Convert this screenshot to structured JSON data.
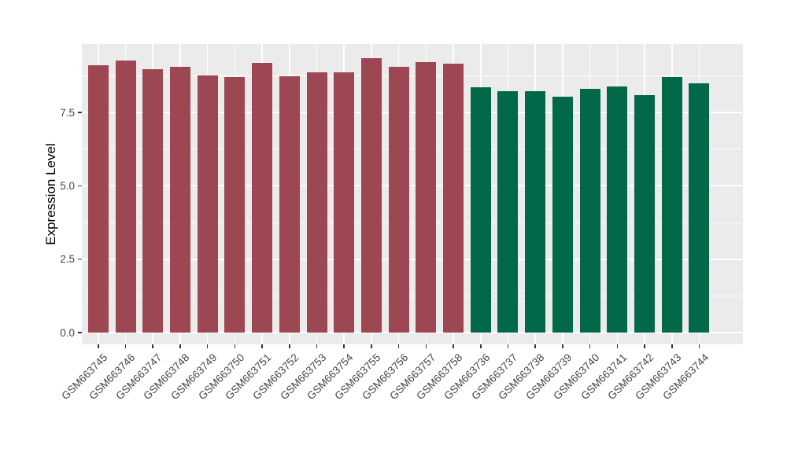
{
  "figure": {
    "background": "#FFFFFF"
  },
  "chart_data": {
    "type": "bar",
    "title": "",
    "xlabel": "",
    "ylabel": "Expression Level",
    "legend_position": "none",
    "grid": "on",
    "panel_background": "#EBEBEB",
    "grid_color": "#FFFFFF",
    "axis_text_color": "#454545",
    "axis_title_color": "#000000",
    "tick_color": "#333333",
    "ylim": [
      0,
      9.8
    ],
    "y_major_ticks": [
      {
        "label": "0.0",
        "value": 0.0
      },
      {
        "label": "2.5",
        "value": 2.5
      },
      {
        "label": "5.0",
        "value": 5.0
      },
      {
        "label": "7.5",
        "value": 7.5
      }
    ],
    "y_minor_breaks": [
      1.25,
      3.75,
      6.25,
      8.75
    ],
    "group_colors": {
      "group1": "#9C4752",
      "group2": "#01694A"
    },
    "bars": [
      {
        "label": "GSM663745",
        "value": 9.1,
        "group": "group1"
      },
      {
        "label": "GSM663746",
        "value": 9.27,
        "group": "group1"
      },
      {
        "label": "GSM663747",
        "value": 8.97,
        "group": "group1"
      },
      {
        "label": "GSM663748",
        "value": 9.06,
        "group": "group1"
      },
      {
        "label": "GSM663749",
        "value": 8.77,
        "group": "group1"
      },
      {
        "label": "GSM663750",
        "value": 8.71,
        "group": "group1"
      },
      {
        "label": "GSM663751",
        "value": 9.18,
        "group": "group1"
      },
      {
        "label": "GSM663752",
        "value": 8.73,
        "group": "group1"
      },
      {
        "label": "GSM663753",
        "value": 8.86,
        "group": "group1"
      },
      {
        "label": "GSM663754",
        "value": 8.86,
        "group": "group1"
      },
      {
        "label": "GSM663755",
        "value": 9.36,
        "group": "group1"
      },
      {
        "label": "GSM663756",
        "value": 9.06,
        "group": "group1"
      },
      {
        "label": "GSM663757",
        "value": 9.22,
        "group": "group1"
      },
      {
        "label": "GSM663758",
        "value": 9.16,
        "group": "group1"
      },
      {
        "label": "GSM663736",
        "value": 8.35,
        "group": "group2"
      },
      {
        "label": "GSM663737",
        "value": 8.22,
        "group": "group2"
      },
      {
        "label": "GSM663738",
        "value": 8.22,
        "group": "group2"
      },
      {
        "label": "GSM663739",
        "value": 8.03,
        "group": "group2"
      },
      {
        "label": "GSM663740",
        "value": 8.3,
        "group": "group2"
      },
      {
        "label": "GSM663741",
        "value": 8.38,
        "group": "group2"
      },
      {
        "label": "GSM663742",
        "value": 8.1,
        "group": "group2"
      },
      {
        "label": "GSM663743",
        "value": 8.7,
        "group": "group2"
      },
      {
        "label": "GSM663744",
        "value": 8.5,
        "group": "group2"
      }
    ]
  }
}
